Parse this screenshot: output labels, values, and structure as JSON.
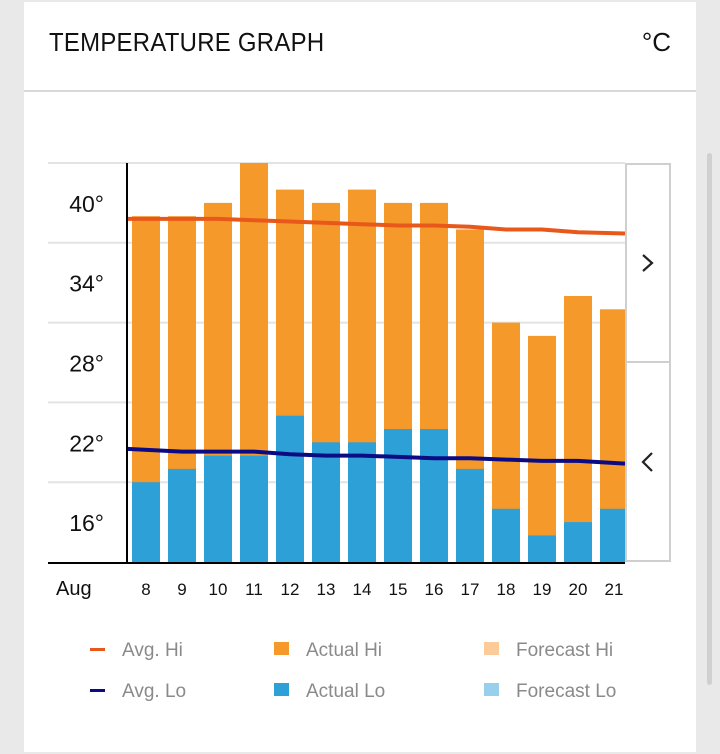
{
  "header": {
    "title": "TEMPERATURE GRAPH",
    "unit": "°C"
  },
  "nav": {
    "next_icon": "chevron-right-icon",
    "prev_icon": "chevron-left-icon"
  },
  "legend": [
    {
      "label": "Avg. Hi",
      "kind": "line",
      "color": "#e8581a"
    },
    {
      "label": "Actual Hi",
      "kind": "box",
      "color": "#f59a2a"
    },
    {
      "label": "Forecast Hi",
      "kind": "box",
      "color": "#fdcb9a"
    },
    {
      "label": "Avg. Lo",
      "kind": "line",
      "color": "#0b0b84"
    },
    {
      "label": "Actual Lo",
      "kind": "box",
      "color": "#2ea0d8"
    },
    {
      "label": "Forecast Lo",
      "kind": "box",
      "color": "#98cfec"
    }
  ],
  "chart_data": {
    "type": "bar",
    "title": "TEMPERATURE GRAPH",
    "xlabel": "Aug",
    "ylabel": "°C",
    "month_label": "Aug",
    "categories": [
      "8",
      "9",
      "10",
      "11",
      "12",
      "13",
      "14",
      "15",
      "16",
      "17",
      "18",
      "19",
      "20",
      "21"
    ],
    "ylim": [
      13,
      43
    ],
    "y_ticks": [
      40,
      34,
      28,
      22,
      16
    ],
    "y_tick_labels": [
      "40°",
      "34°",
      "28°",
      "22°",
      "16°"
    ],
    "gridlines": [
      43,
      37,
      31,
      25,
      19
    ],
    "grid": true,
    "legend_position": "bottom",
    "series": [
      {
        "name": "Actual Hi",
        "type": "bar",
        "color": "#f59a2a",
        "values": [
          39,
          39,
          40,
          43,
          41,
          40,
          41,
          40,
          40,
          38,
          31,
          30,
          33,
          32
        ]
      },
      {
        "name": "Actual Lo",
        "type": "bar",
        "color": "#2ea0d8",
        "values": [
          19,
          20,
          21,
          21,
          24,
          22,
          22,
          23,
          23,
          20,
          17,
          15,
          16,
          17
        ]
      },
      {
        "name": "Avg. Hi",
        "type": "line",
        "color": "#e8581a",
        "values": [
          38.8,
          38.8,
          38.8,
          38.7,
          38.6,
          38.5,
          38.4,
          38.3,
          38.3,
          38.2,
          38.0,
          38.0,
          37.8,
          37.7
        ]
      },
      {
        "name": "Avg. Lo",
        "type": "line",
        "color": "#0b0b84",
        "values": [
          21.5,
          21.3,
          21.3,
          21.3,
          21.1,
          21.0,
          21.0,
          20.9,
          20.8,
          20.8,
          20.7,
          20.6,
          20.6,
          20.4
        ]
      }
    ]
  }
}
